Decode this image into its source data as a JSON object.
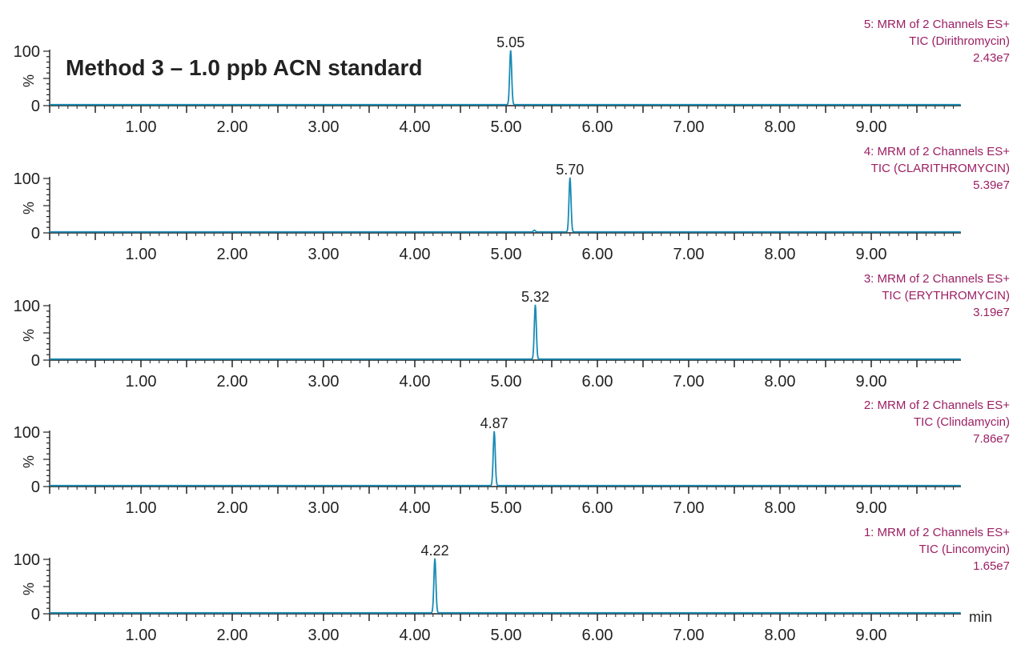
{
  "chart_data": {
    "type": "line",
    "title": "Method 3 – 1.0 ppb ACN standard",
    "x_unit_label": "min",
    "y_unit_label": "%",
    "xlim": [
      0,
      10
    ],
    "ylim": [
      0,
      100
    ],
    "x_ticks": [
      "1.00",
      "2.00",
      "3.00",
      "4.00",
      "5.00",
      "6.00",
      "7.00",
      "8.00",
      "9.00"
    ],
    "y_ticks": [
      "100",
      "0"
    ],
    "grid": false,
    "line_color": "#1a8bb5",
    "info_color": "#9b1f63",
    "text_color": "#222222",
    "series": [
      {
        "name": "Dirithromycin",
        "info": [
          "5: MRM of 2 Channels ES+",
          "TIC (Dirithromycin)",
          "2.43e7"
        ],
        "peak_rt": 5.05,
        "peak_label": "5.05",
        "peaks": [
          {
            "rt": 5.05,
            "height": 100
          }
        ]
      },
      {
        "name": "CLARITHROMYCIN",
        "info": [
          "4: MRM of 2 Channels ES+",
          "TIC (CLARITHROMYCIN)",
          "5.39e7"
        ],
        "peak_rt": 5.7,
        "peak_label": "5.70",
        "peaks": [
          {
            "rt": 5.7,
            "height": 100
          },
          {
            "rt": 5.31,
            "height": 3
          }
        ]
      },
      {
        "name": "ERYTHROMYCIN",
        "info": [
          "3: MRM of 2 Channels ES+",
          "TIC (ERYTHROMYCIN)",
          "3.19e7"
        ],
        "peak_rt": 5.32,
        "peak_label": "5.32",
        "peaks": [
          {
            "rt": 5.32,
            "height": 100
          }
        ]
      },
      {
        "name": "Clindamycin",
        "info": [
          "2: MRM of 2 Channels ES+",
          "TIC (Clindamycin)",
          "7.86e7"
        ],
        "peak_rt": 4.87,
        "peak_label": "4.87",
        "peaks": [
          {
            "rt": 4.87,
            "height": 100
          }
        ]
      },
      {
        "name": "Lincomycin",
        "info": [
          "1: MRM of 2 Channels ES+",
          "TIC (Lincomycin)",
          "1.65e7"
        ],
        "peak_rt": 4.22,
        "peak_label": "4.22",
        "peaks": [
          {
            "rt": 4.22,
            "height": 100
          }
        ]
      }
    ]
  }
}
